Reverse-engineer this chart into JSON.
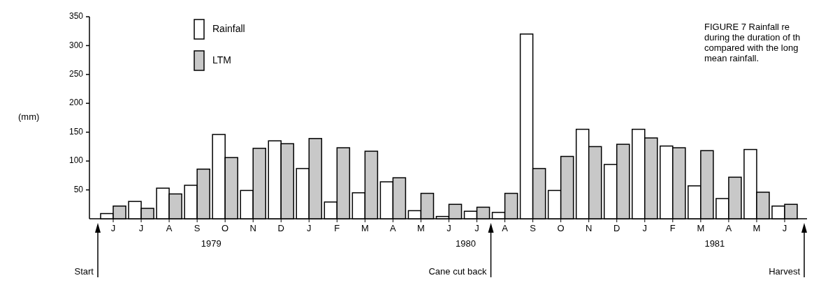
{
  "chart_data": {
    "type": "bar",
    "title": "FIGURE 7  Rainfall re\nduring the duration of th\ncompared with the  long\nmean rainfall.",
    "ylabel": "(mm)",
    "categories": [
      "J",
      "J",
      "A",
      "S",
      "O",
      "N",
      "D",
      "J",
      "F",
      "M",
      "A",
      "M",
      "J",
      "J",
      "A",
      "S",
      "O",
      "N",
      "D",
      "J",
      "F",
      "M",
      "A",
      "M",
      "J"
    ],
    "series": [
      {
        "name": "Rainfall",
        "color": "#ffffff",
        "values": [
          9,
          30,
          53,
          58,
          146,
          49,
          135,
          87,
          29,
          45,
          64,
          14,
          4,
          13,
          11,
          320,
          49,
          155,
          94,
          155,
          126,
          57,
          35,
          120,
          22
        ]
      },
      {
        "name": "LTM",
        "color": "#c8c8c8",
        "values": [
          22,
          18,
          43,
          86,
          106,
          122,
          130,
          139,
          123,
          117,
          71,
          44,
          25,
          20,
          44,
          87,
          108,
          125,
          129,
          140,
          123,
          118,
          72,
          46,
          25
        ]
      }
    ],
    "ylim": [
      0,
      350
    ],
    "yticks": [
      50,
      100,
      150,
      200,
      250,
      300,
      350
    ],
    "grid": false,
    "legend": "top left",
    "annotations": [
      "1979",
      "1980",
      "1981",
      "Start",
      "Cane cut back",
      "Harvest"
    ]
  }
}
